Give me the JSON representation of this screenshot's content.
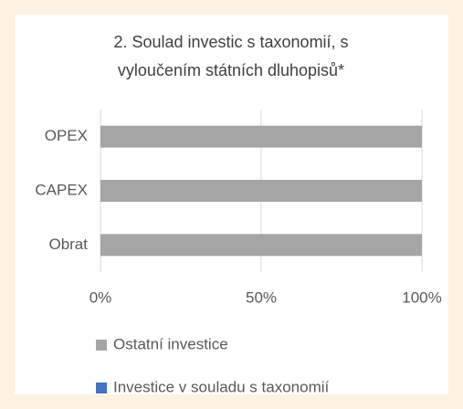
{
  "chart_data": {
    "type": "stacked-bar-horizontal",
    "title_lines": [
      "2. Soulad investic s taxonomií, s",
      "vyloučením státních dluhopisů*"
    ],
    "categories": [
      "OPEX",
      "CAPEX",
      "Obrat"
    ],
    "series": [
      {
        "name": "Ostatní investice",
        "color": "#a5a5a5",
        "values": [
          100,
          100,
          100
        ]
      },
      {
        "name": "Investice v souladu s taxonomií",
        "color": "#4472c4",
        "values": [
          0,
          0,
          0
        ]
      }
    ],
    "xlim": [
      0,
      100
    ],
    "xticks": [
      {
        "value": 0,
        "label": "0%"
      },
      {
        "value": 50,
        "label": "50%"
      },
      {
        "value": 100,
        "label": "100%"
      }
    ],
    "grid": true,
    "legend": "bottom"
  }
}
